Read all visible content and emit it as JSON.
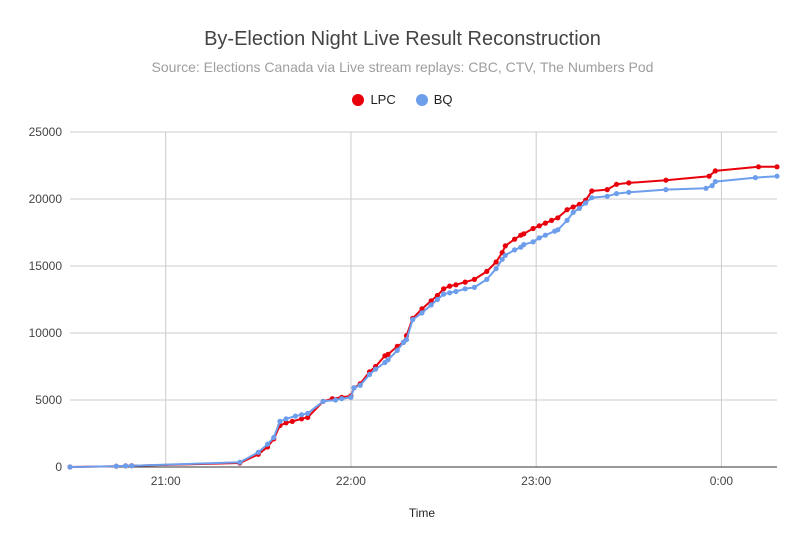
{
  "chart_data": {
    "type": "line",
    "title": "By-Election Night Live Result Reconstruction",
    "subtitle": "Source: Elections Canada via Live stream replays: CBC, CTV, The Numbers Pod",
    "xlabel": "Time",
    "ylabel": "",
    "x_unit": "minutes after 20:00",
    "xlim": [
      29,
      258
    ],
    "ylim": [
      0,
      25000
    ],
    "x_ticks": [
      {
        "value": 60,
        "label": "21:00"
      },
      {
        "value": 120,
        "label": "22:00"
      },
      {
        "value": 180,
        "label": "23:00"
      },
      {
        "value": 240,
        "label": "0:00"
      }
    ],
    "y_ticks": [
      {
        "value": 0,
        "label": "0"
      },
      {
        "value": 5000,
        "label": "5000"
      },
      {
        "value": 10000,
        "label": "10000"
      },
      {
        "value": 15000,
        "label": "15000"
      },
      {
        "value": 20000,
        "label": "20000"
      },
      {
        "value": 25000,
        "label": "25000"
      }
    ],
    "grid": true,
    "legend_position": "top-center",
    "series": [
      {
        "name": "LPC",
        "color": "#e8000b",
        "points": [
          [
            29,
            0
          ],
          [
            44,
            60
          ],
          [
            47,
            80
          ],
          [
            49,
            100
          ],
          [
            84,
            300
          ],
          [
            90,
            950
          ],
          [
            93,
            1500
          ],
          [
            95,
            2100
          ],
          [
            97,
            3100
          ],
          [
            99,
            3300
          ],
          [
            101,
            3400
          ],
          [
            104,
            3600
          ],
          [
            106,
            3700
          ],
          [
            111,
            4900
          ],
          [
            114,
            5100
          ],
          [
            117,
            5200
          ],
          [
            120,
            5300
          ],
          [
            121,
            5900
          ],
          [
            123,
            6200
          ],
          [
            126,
            7100
          ],
          [
            128,
            7500
          ],
          [
            131,
            8300
          ],
          [
            132,
            8400
          ],
          [
            135,
            9000
          ],
          [
            137,
            9300
          ],
          [
            138,
            9800
          ],
          [
            140,
            11100
          ],
          [
            143,
            11800
          ],
          [
            146,
            12400
          ],
          [
            148,
            12800
          ],
          [
            150,
            13300
          ],
          [
            152,
            13500
          ],
          [
            154,
            13600
          ],
          [
            157,
            13800
          ],
          [
            160,
            14000
          ],
          [
            164,
            14600
          ],
          [
            167,
            15300
          ],
          [
            169,
            16000
          ],
          [
            170,
            16500
          ],
          [
            173,
            17000
          ],
          [
            175,
            17300
          ],
          [
            176,
            17400
          ],
          [
            179,
            17800
          ],
          [
            181,
            18000
          ],
          [
            183,
            18200
          ],
          [
            185,
            18400
          ],
          [
            187,
            18600
          ],
          [
            190,
            19200
          ],
          [
            192,
            19400
          ],
          [
            194,
            19600
          ],
          [
            196,
            19900
          ],
          [
            198,
            20600
          ],
          [
            203,
            20700
          ],
          [
            206,
            21100
          ],
          [
            210,
            21200
          ],
          [
            222,
            21400
          ],
          [
            236,
            21700
          ],
          [
            238,
            22100
          ],
          [
            252,
            22400
          ],
          [
            258,
            22400
          ]
        ]
      },
      {
        "name": "BQ",
        "color": "#6d9eeb",
        "points": [
          [
            29,
            0
          ],
          [
            44,
            60
          ],
          [
            47,
            80
          ],
          [
            49,
            90
          ],
          [
            84,
            350
          ],
          [
            90,
            1100
          ],
          [
            93,
            1700
          ],
          [
            95,
            2200
          ],
          [
            97,
            3400
          ],
          [
            99,
            3600
          ],
          [
            102,
            3800
          ],
          [
            104,
            3900
          ],
          [
            106,
            4000
          ],
          [
            111,
            4900
          ],
          [
            115,
            5000
          ],
          [
            117,
            5100
          ],
          [
            120,
            5200
          ],
          [
            121,
            5900
          ],
          [
            123,
            6100
          ],
          [
            126,
            6900
          ],
          [
            128,
            7300
          ],
          [
            131,
            7800
          ],
          [
            132,
            8000
          ],
          [
            135,
            8700
          ],
          [
            137,
            9300
          ],
          [
            138,
            9500
          ],
          [
            140,
            11000
          ],
          [
            143,
            11500
          ],
          [
            146,
            12100
          ],
          [
            148,
            12500
          ],
          [
            150,
            12900
          ],
          [
            152,
            13000
          ],
          [
            154,
            13100
          ],
          [
            157,
            13300
          ],
          [
            160,
            13400
          ],
          [
            164,
            14000
          ],
          [
            167,
            14800
          ],
          [
            169,
            15500
          ],
          [
            170,
            15800
          ],
          [
            173,
            16200
          ],
          [
            175,
            16400
          ],
          [
            176,
            16600
          ],
          [
            179,
            16800
          ],
          [
            181,
            17100
          ],
          [
            183,
            17300
          ],
          [
            186,
            17600
          ],
          [
            187,
            17700
          ],
          [
            190,
            18400
          ],
          [
            192,
            19000
          ],
          [
            194,
            19300
          ],
          [
            196,
            19700
          ],
          [
            198,
            20100
          ],
          [
            203,
            20200
          ],
          [
            206,
            20400
          ],
          [
            210,
            20500
          ],
          [
            222,
            20700
          ],
          [
            235,
            20800
          ],
          [
            237,
            21000
          ],
          [
            238,
            21300
          ],
          [
            251,
            21600
          ],
          [
            258,
            21700
          ]
        ]
      }
    ]
  }
}
